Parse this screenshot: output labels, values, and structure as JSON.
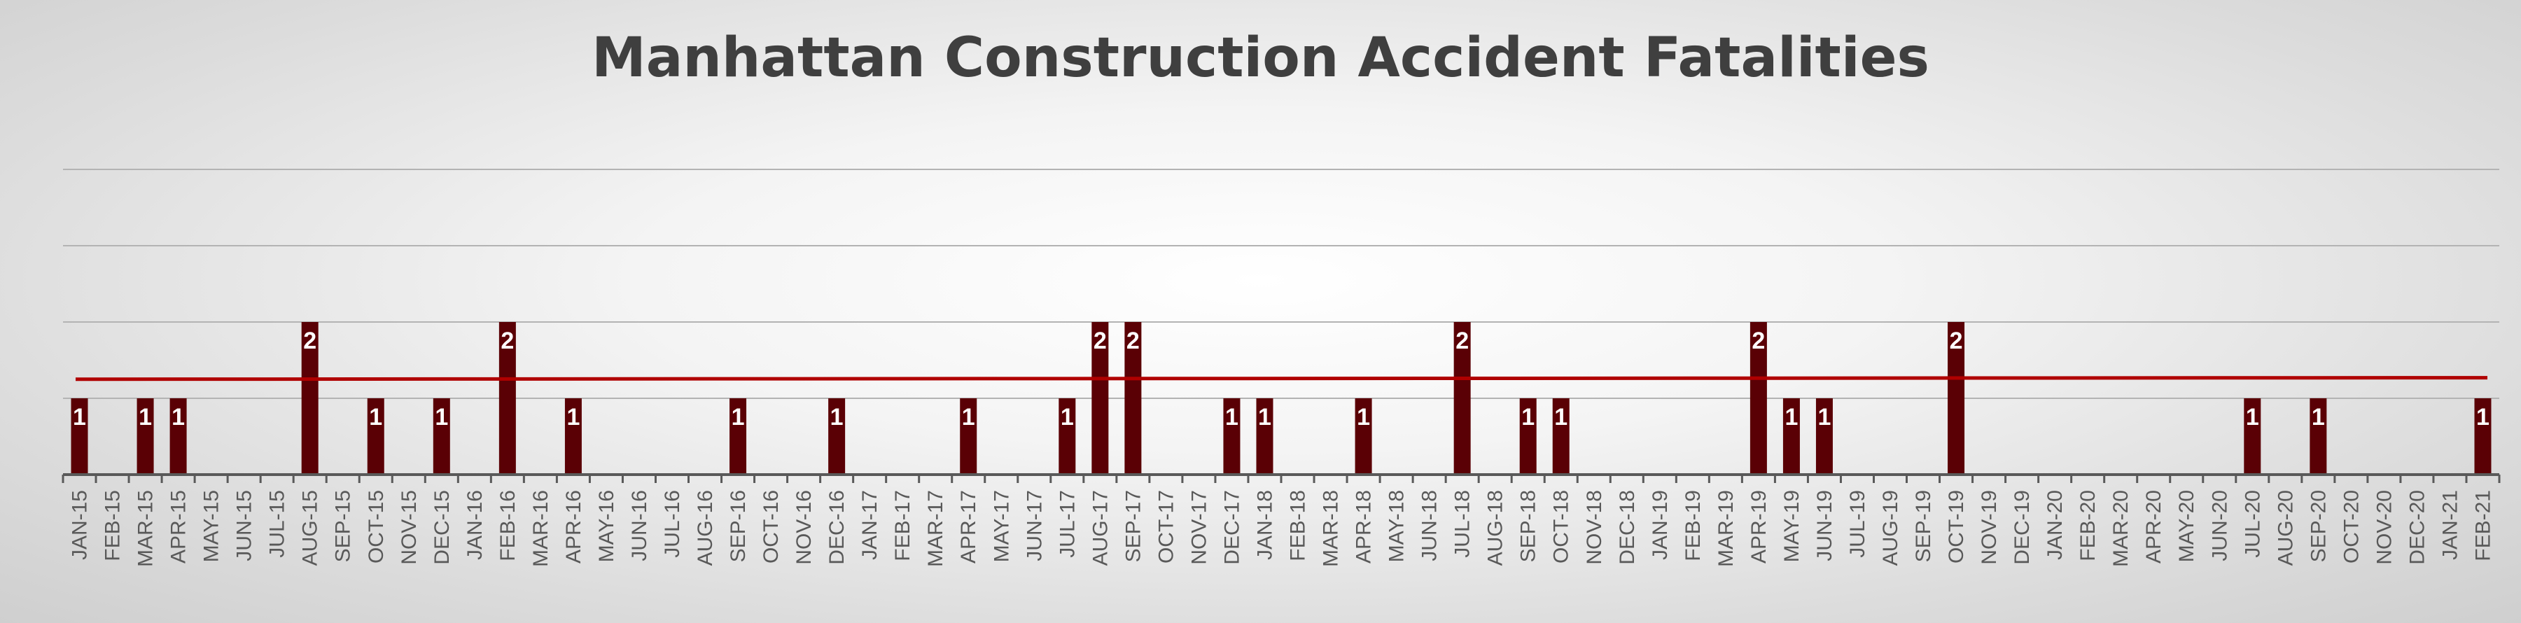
{
  "colors": {
    "bar": "#5a0005",
    "average_line": "#b00000",
    "gridline": "#b3b3b3",
    "axis": "#595959",
    "label_text": "#ffffff",
    "tick_text": "#595959"
  },
  "chart_data": {
    "type": "bar",
    "title": "Manhattan Construction Accident Fatalities",
    "xlabel": "",
    "ylabel": "",
    "ylim": [
      0,
      4
    ],
    "grid": true,
    "legend": "none",
    "categories": [
      "JAN-15",
      "FEB-15",
      "MAR-15",
      "APR-15",
      "MAY-15",
      "JUN-15",
      "JUL-15",
      "AUG-15",
      "SEP-15",
      "OCT-15",
      "NOV-15",
      "DEC-15",
      "JAN-16",
      "FEB-16",
      "MAR-16",
      "APR-16",
      "MAY-16",
      "JUN-16",
      "JUL-16",
      "AUG-16",
      "SEP-16",
      "OCT-16",
      "NOV-16",
      "DEC-16",
      "JAN-17",
      "FEB-17",
      "MAR-17",
      "APR-17",
      "MAY-17",
      "JUN-17",
      "JUL-17",
      "AUG-17",
      "SEP-17",
      "OCT-17",
      "NOV-17",
      "DEC-17",
      "JAN-18",
      "FEB-18",
      "MAR-18",
      "APR-18",
      "MAY-18",
      "JUN-18",
      "JUL-18",
      "AUG-18",
      "SEP-18",
      "OCT-18",
      "NOV-18",
      "DEC-18",
      "JAN-19",
      "FEB-19",
      "MAR-19",
      "APR-19",
      "MAY-19",
      "JUN-19",
      "JUL-19",
      "AUG-19",
      "SEP-19",
      "OCT-19",
      "NOV-19",
      "DEC-19",
      "JAN-20",
      "FEB-20",
      "MAR-20",
      "APR-20",
      "MAY-20",
      "JUN-20",
      "JUL-20",
      "AUG-20",
      "SEP-20",
      "OCT-20",
      "NOV-20",
      "DEC-20",
      "JAN-21",
      "FEB-21"
    ],
    "values": [
      1,
      0,
      1,
      1,
      0,
      0,
      0,
      2,
      0,
      1,
      0,
      1,
      0,
      2,
      0,
      1,
      0,
      0,
      0,
      0,
      1,
      0,
      0,
      1,
      0,
      0,
      0,
      1,
      0,
      0,
      1,
      2,
      2,
      0,
      0,
      1,
      1,
      0,
      0,
      1,
      0,
      0,
      2,
      0,
      1,
      1,
      0,
      0,
      0,
      0,
      0,
      2,
      1,
      1,
      0,
      0,
      0,
      2,
      0,
      0,
      0,
      0,
      0,
      0,
      0,
      0,
      1,
      0,
      1,
      0,
      0,
      0,
      0,
      1
    ],
    "average_line": {
      "start": 1.25,
      "end": 1.27
    }
  }
}
